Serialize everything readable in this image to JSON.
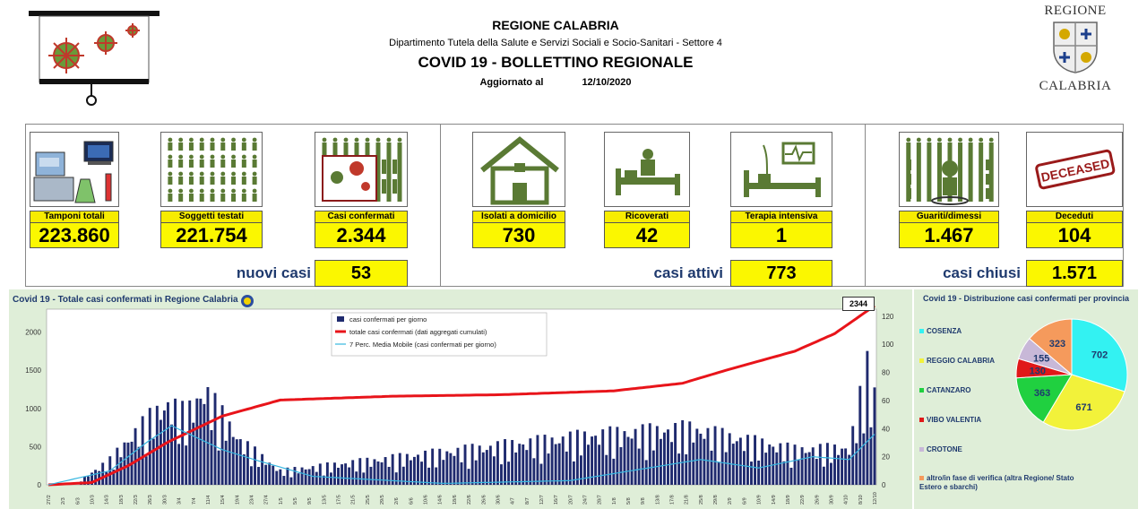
{
  "header": {
    "region": "REGIONE CALABRIA",
    "department": "Dipartimento Tutela della Salute e Servizi Sociali e Socio-Sanitari - Settore 4",
    "title": "COVID 19 - BOLLETTINO REGIONALE",
    "updated_label": "Aggiornato al",
    "updated_date": "12/10/2020",
    "logo_top": "REGIONE",
    "logo_bottom": "CALABRIA"
  },
  "kpis": {
    "tamponi": {
      "label": "Tamponi totali",
      "value": "223.860"
    },
    "soggetti": {
      "label": "Soggetti testati",
      "value": "221.754"
    },
    "confermati": {
      "label": "Casi confermati",
      "value": "2.344"
    },
    "isolati": {
      "label": "Isolati a domicilio",
      "value": "730"
    },
    "ricoverati": {
      "label": "Ricoverati",
      "value": "42"
    },
    "terapia": {
      "label": "Terapia intensiva",
      "value": "1"
    },
    "guariti": {
      "label": "Guariti/dimessi",
      "value": "1.467"
    },
    "deceduti": {
      "label": "Deceduti",
      "value": "104"
    },
    "deceased_stamp": "DECEASED"
  },
  "summaries": {
    "nuovi": {
      "label": "nuovi casi",
      "value": "53"
    },
    "attivi": {
      "label": "casi attivi",
      "value": "773"
    },
    "chiusi": {
      "label": "casi chiusi",
      "value": "1.571"
    }
  },
  "colors": {
    "bar": "#1f2a6e",
    "cumulative": "#e8141a",
    "moving_average": "#36b6e0",
    "kpi_yellow": "#fbf700",
    "panel_bg": "#dfeed8"
  },
  "chart_data": [
    {
      "type": "bar",
      "title": "Covid 19 - Totale casi confermati in Regione Calabria",
      "total_callout": "2344",
      "x_start": "2020-02-27",
      "x_end": "2020-10-12",
      "x_ticks_note": "daily dates from 27/2 to 12/10",
      "y_left_ticks": [
        0,
        500,
        1000,
        1500,
        2000
      ],
      "y_left_range": [
        0,
        2300
      ],
      "y_right_ticks": [
        0,
        20,
        40,
        60,
        80,
        100,
        120
      ],
      "y_right_range": [
        0,
        125
      ],
      "legend": [
        "casi confermati per giorno",
        "totale casi confermati (dati aggregati cumulati)",
        "7 Perc. Media Mobile (casi confermati per giorno)"
      ],
      "series": [
        {
          "name": "casi confermati per giorno",
          "axis": "right",
          "kind": "bar",
          "sampled_dates": [
            "2020-03-07",
            "2020-03-15",
            "2020-03-21",
            "2020-03-27",
            "2020-03-31",
            "2020-04-05",
            "2020-04-10",
            "2020-04-20",
            "2020-05-01",
            "2020-07-26",
            "2020-08-22",
            "2020-09-05",
            "2020-09-20",
            "2020-10-05",
            "2020-10-10",
            "2020-10-11",
            "2020-10-12"
          ],
          "sampled_values": [
            3,
            14,
            28,
            40,
            46,
            40,
            54,
            25,
            8,
            28,
            32,
            26,
            20,
            21,
            67,
            45,
            53
          ]
        },
        {
          "name": "totale casi confermati (dati aggregati cumulati)",
          "axis": "left",
          "kind": "line",
          "sampled_dates": [
            "2020-02-27",
            "2020-03-10",
            "2020-03-20",
            "2020-03-31",
            "2020-04-15",
            "2020-05-01",
            "2020-06-01",
            "2020-07-01",
            "2020-08-01",
            "2020-08-20",
            "2020-09-01",
            "2020-09-20",
            "2020-10-01",
            "2020-10-12"
          ],
          "sampled_values": [
            0,
            30,
            250,
            560,
            900,
            1110,
            1160,
            1180,
            1230,
            1330,
            1500,
            1750,
            1980,
            2344
          ]
        },
        {
          "name": "7 Perc. Media Mobile (casi confermati per giorno)",
          "axis": "right",
          "kind": "line",
          "sampled_dates": [
            "2020-02-27",
            "2020-03-15",
            "2020-03-25",
            "2020-04-01",
            "2020-04-15",
            "2020-04-25",
            "2020-05-10",
            "2020-06-15",
            "2020-07-20",
            "2020-08-25",
            "2020-09-10",
            "2020-09-25",
            "2020-10-05",
            "2020-10-12"
          ],
          "sampled_values": [
            0,
            10,
            30,
            42,
            25,
            17,
            6,
            1,
            3,
            18,
            12,
            20,
            18,
            36
          ]
        }
      ]
    },
    {
      "type": "pie",
      "title": "Covid 19 - Distribuzione casi confermati per provincia",
      "legend": [
        "COSENZA",
        "REGGIO CALABRIA",
        "CATANZARO",
        "VIBO VALENTIA",
        "CROTONE",
        "altro/in fase di verifica (altra Regione/ Stato Estero e sbarchi)"
      ],
      "slices": [
        {
          "name": "COSENZA",
          "value": 702,
          "color": "#33f2f2"
        },
        {
          "name": "REGGIO CALABRIA",
          "value": 671,
          "color": "#f2f23a"
        },
        {
          "name": "CATANZARO",
          "value": 363,
          "color": "#20d040"
        },
        {
          "name": "VIBO VALENTIA",
          "value": 130,
          "color": "#e01818"
        },
        {
          "name": "CROTONE",
          "value": 155,
          "color": "#c8b8d8"
        },
        {
          "name": "altro/in fase di verifica (altra Regione/ Stato Estero e sbarchi)",
          "value": 323,
          "color": "#f59a5c"
        }
      ]
    }
  ]
}
